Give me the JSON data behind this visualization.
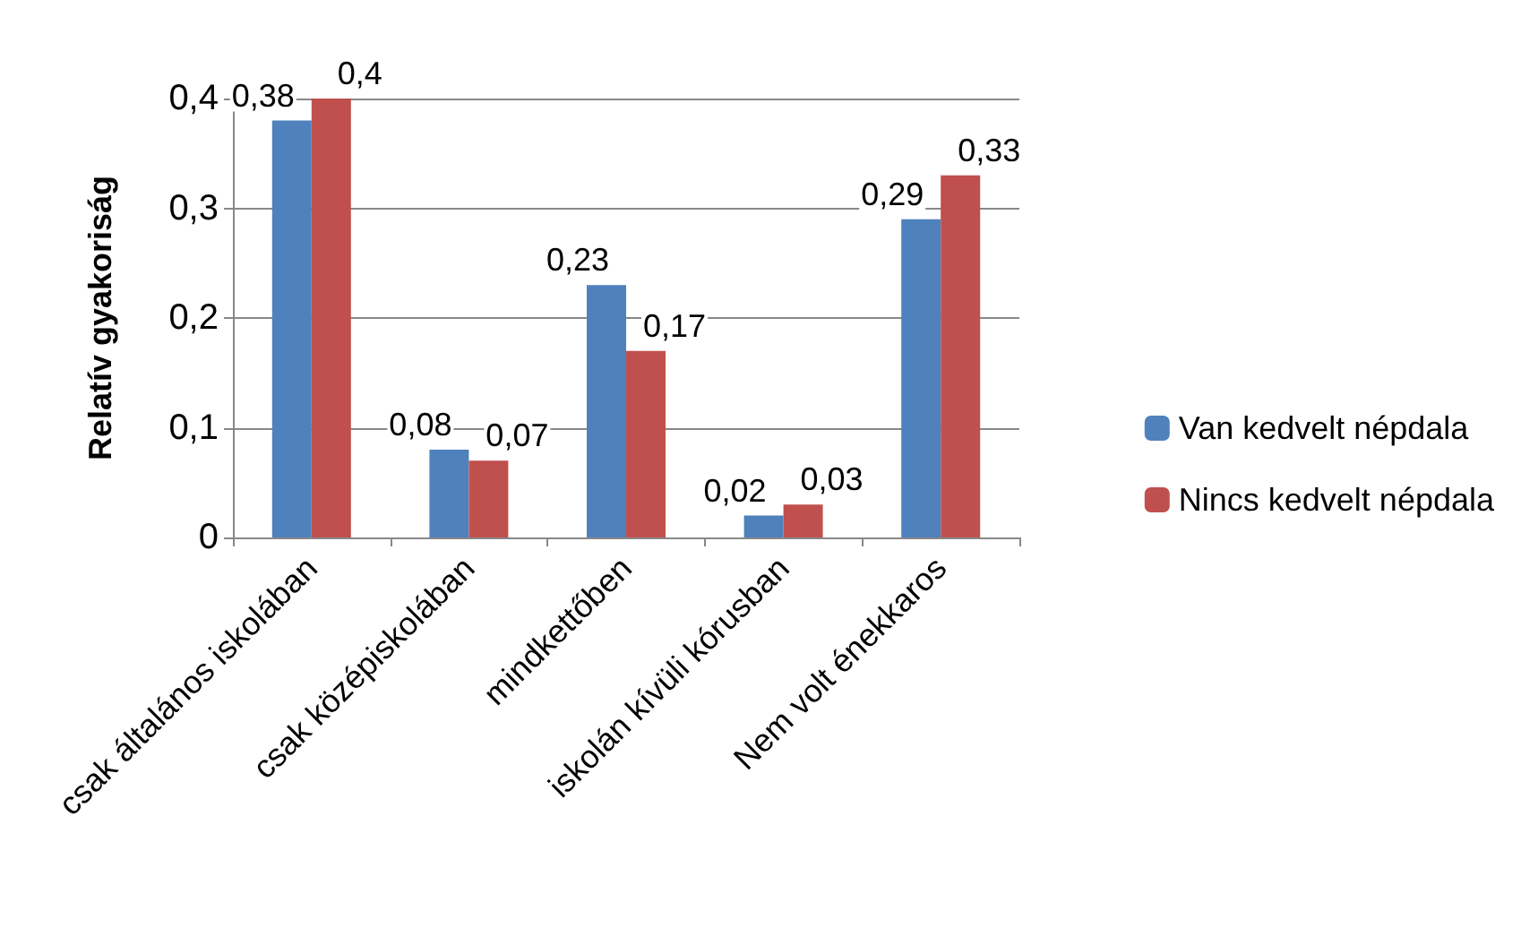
{
  "chart_data": {
    "type": "bar",
    "ylabel": "Relatív gyakoriság",
    "categories": [
      "csak általános iskolában",
      "csak középiskolában",
      "mindkettőben",
      "iskolán kívüli kórusban",
      "Nem volt énekkaros"
    ],
    "series": [
      {
        "name": "Van kedvelt népdala",
        "color": "#4f81bd",
        "values": [
          0.38,
          0.08,
          0.23,
          0.02,
          0.29
        ],
        "value_labels": [
          "0,38",
          "0,08",
          "0,23",
          "0,02",
          "0,29"
        ]
      },
      {
        "name": "Nincs kedvelt népdala",
        "color": "#c0504d",
        "values": [
          0.4,
          0.07,
          0.17,
          0.03,
          0.33
        ],
        "value_labels": [
          "0,4",
          "0,07",
          "0,17",
          "0,03",
          "0,33"
        ]
      }
    ],
    "ylim": [
      0,
      0.4
    ],
    "yticks": [
      0,
      {
        "value": 0.1,
        "label": "0,1"
      },
      {
        "value": 0.2,
        "label": "0,2"
      },
      {
        "value": 0.3,
        "label": "0,3"
      },
      {
        "value": 0.4,
        "label": "0,4"
      }
    ],
    "grid": "y",
    "legend": "right"
  }
}
